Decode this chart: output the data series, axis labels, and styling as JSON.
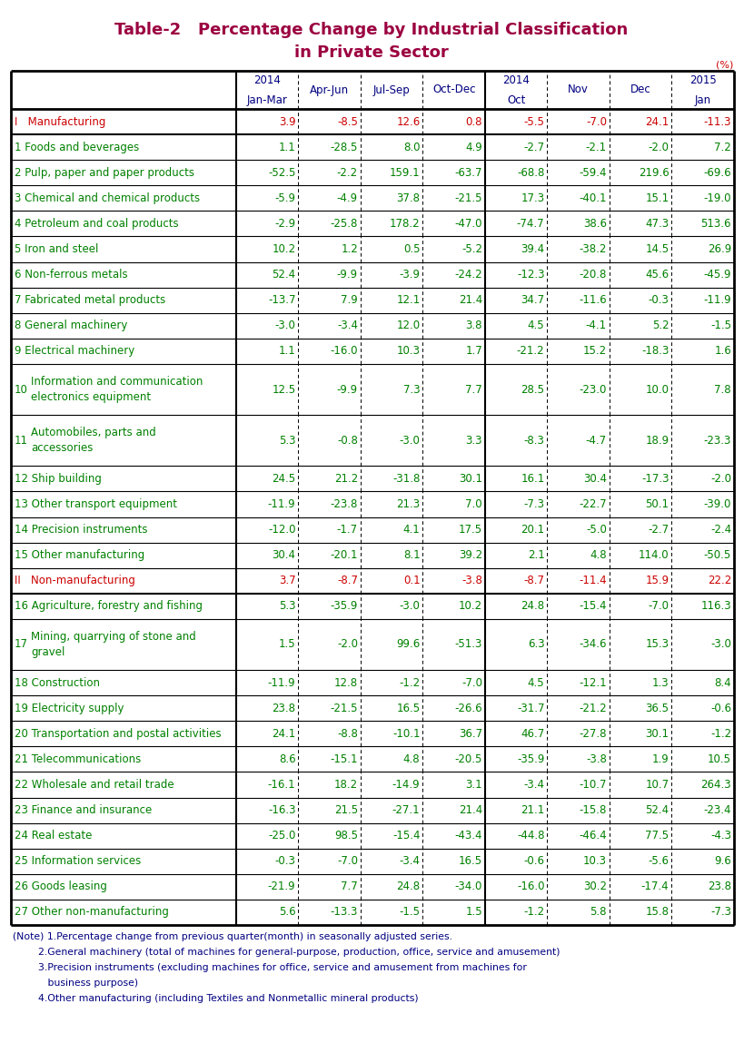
{
  "title_line1": "Table-2   Percentage Change by Industrial Classification",
  "title_line2": "in Private Sector",
  "title_color": "#9B0040",
  "percent_label": "(%)",
  "rows": [
    {
      "label": "I   Manufacturing",
      "label_color": "#CC0000",
      "values": [
        "3.9",
        "-8.5",
        "12.6",
        "0.8",
        "-5.5",
        "-7.0",
        "24.1",
        "-11.3"
      ],
      "is_section": true
    },
    {
      "label": "1 Foods and beverages",
      "label_color": "#008000",
      "values": [
        "1.1",
        "-28.5",
        "8.0",
        "4.9",
        "-2.7",
        "-2.1",
        "-2.0",
        "7.2"
      ],
      "is_section": false
    },
    {
      "label": "2 Pulp, paper and paper products",
      "label_color": "#008000",
      "values": [
        "-52.5",
        "-2.2",
        "159.1",
        "-63.7",
        "-68.8",
        "-59.4",
        "219.6",
        "-69.6"
      ],
      "is_section": false
    },
    {
      "label": "3 Chemical and chemical products",
      "label_color": "#008000",
      "values": [
        "-5.9",
        "-4.9",
        "37.8",
        "-21.5",
        "17.3",
        "-40.1",
        "15.1",
        "-19.0"
      ],
      "is_section": false
    },
    {
      "label": "4 Petroleum and coal products",
      "label_color": "#008000",
      "values": [
        "-2.9",
        "-25.8",
        "178.2",
        "-47.0",
        "-74.7",
        "38.6",
        "47.3",
        "513.6"
      ],
      "is_section": false
    },
    {
      "label": "5 Iron and steel",
      "label_color": "#008000",
      "values": [
        "10.2",
        "1.2",
        "0.5",
        "-5.2",
        "39.4",
        "-38.2",
        "14.5",
        "26.9"
      ],
      "is_section": false
    },
    {
      "label": "6 Non-ferrous metals",
      "label_color": "#008000",
      "values": [
        "52.4",
        "-9.9",
        "-3.9",
        "-24.2",
        "-12.3",
        "-20.8",
        "45.6",
        "-45.9"
      ],
      "is_section": false
    },
    {
      "label": "7 Fabricated metal products",
      "label_color": "#008000",
      "values": [
        "-13.7",
        "7.9",
        "12.1",
        "21.4",
        "34.7",
        "-11.6",
        "-0.3",
        "-11.9"
      ],
      "is_section": false
    },
    {
      "label": "8 General machinery",
      "label_color": "#008000",
      "values": [
        "-3.0",
        "-3.4",
        "12.0",
        "3.8",
        "4.5",
        "-4.1",
        "5.2",
        "-1.5"
      ],
      "is_section": false
    },
    {
      "label": "9 Electrical machinery",
      "label_color": "#008000",
      "values": [
        "1.1",
        "-16.0",
        "10.3",
        "1.7",
        "-21.2",
        "15.2",
        "-18.3",
        "1.6"
      ],
      "is_section": false
    },
    {
      "label": "Information and communication\nelectronics equipment",
      "num_label": "10",
      "label_color": "#008000",
      "values": [
        "12.5",
        "-9.9",
        "7.3",
        "7.7",
        "28.5",
        "-23.0",
        "10.0",
        "7.8"
      ],
      "is_section": false,
      "multiline": true
    },
    {
      "label": "Automobiles, parts and\naccessories",
      "num_label": "11",
      "label_color": "#008000",
      "values": [
        "5.3",
        "-0.8",
        "-3.0",
        "3.3",
        "-8.3",
        "-4.7",
        "18.9",
        "-23.3"
      ],
      "is_section": false,
      "multiline": true
    },
    {
      "label": "12 Ship building",
      "label_color": "#008000",
      "values": [
        "24.5",
        "21.2",
        "-31.8",
        "30.1",
        "16.1",
        "30.4",
        "-17.3",
        "-2.0"
      ],
      "is_section": false
    },
    {
      "label": "13 Other transport equipment",
      "label_color": "#008000",
      "values": [
        "-11.9",
        "-23.8",
        "21.3",
        "7.0",
        "-7.3",
        "-22.7",
        "50.1",
        "-39.0"
      ],
      "is_section": false
    },
    {
      "label": "14 Precision instruments",
      "label_color": "#008000",
      "values": [
        "-12.0",
        "-1.7",
        "4.1",
        "17.5",
        "20.1",
        "-5.0",
        "-2.7",
        "-2.4"
      ],
      "is_section": false
    },
    {
      "label": "15 Other manufacturing",
      "label_color": "#008000",
      "values": [
        "30.4",
        "-20.1",
        "8.1",
        "39.2",
        "2.1",
        "4.8",
        "114.0",
        "-50.5"
      ],
      "is_section": false
    },
    {
      "label": "II   Non-manufacturing",
      "label_color": "#CC0000",
      "values": [
        "3.7",
        "-8.7",
        "0.1",
        "-3.8",
        "-8.7",
        "-11.4",
        "15.9",
        "22.2"
      ],
      "is_section": true
    },
    {
      "label": "16 Agriculture, forestry and fishing",
      "label_color": "#008000",
      "values": [
        "5.3",
        "-35.9",
        "-3.0",
        "10.2",
        "24.8",
        "-15.4",
        "-7.0",
        "116.3"
      ],
      "is_section": false
    },
    {
      "label": "Mining, quarrying of stone and\ngravel",
      "num_label": "17",
      "label_color": "#008000",
      "values": [
        "1.5",
        "-2.0",
        "99.6",
        "-51.3",
        "6.3",
        "-34.6",
        "15.3",
        "-3.0"
      ],
      "is_section": false,
      "multiline": true
    },
    {
      "label": "18 Construction",
      "label_color": "#008000",
      "values": [
        "-11.9",
        "12.8",
        "-1.2",
        "-7.0",
        "4.5",
        "-12.1",
        "1.3",
        "8.4"
      ],
      "is_section": false
    },
    {
      "label": "19 Electricity supply",
      "label_color": "#008000",
      "values": [
        "23.8",
        "-21.5",
        "16.5",
        "-26.6",
        "-31.7",
        "-21.2",
        "36.5",
        "-0.6"
      ],
      "is_section": false
    },
    {
      "label": "20 Transportation and postal activities",
      "label_color": "#008000",
      "values": [
        "24.1",
        "-8.8",
        "-10.1",
        "36.7",
        "46.7",
        "-27.8",
        "30.1",
        "-1.2"
      ],
      "is_section": false
    },
    {
      "label": "21 Telecommunications",
      "label_color": "#008000",
      "values": [
        "8.6",
        "-15.1",
        "4.8",
        "-20.5",
        "-35.9",
        "-3.8",
        "1.9",
        "10.5"
      ],
      "is_section": false
    },
    {
      "label": "22 Wholesale and retail trade",
      "label_color": "#008000",
      "values": [
        "-16.1",
        "18.2",
        "-14.9",
        "3.1",
        "-3.4",
        "-10.7",
        "10.7",
        "264.3"
      ],
      "is_section": false
    },
    {
      "label": "23 Finance and insurance",
      "label_color": "#008000",
      "values": [
        "-16.3",
        "21.5",
        "-27.1",
        "21.4",
        "21.1",
        "-15.8",
        "52.4",
        "-23.4"
      ],
      "is_section": false
    },
    {
      "label": "24 Real estate",
      "label_color": "#008000",
      "values": [
        "-25.0",
        "98.5",
        "-15.4",
        "-43.4",
        "-44.8",
        "-46.4",
        "77.5",
        "-4.3"
      ],
      "is_section": false
    },
    {
      "label": "25 Information services",
      "label_color": "#008000",
      "values": [
        "-0.3",
        "-7.0",
        "-3.4",
        "16.5",
        "-0.6",
        "10.3",
        "-5.6",
        "9.6"
      ],
      "is_section": false
    },
    {
      "label": "26 Goods leasing",
      "label_color": "#008000",
      "values": [
        "-21.9",
        "7.7",
        "24.8",
        "-34.0",
        "-16.0",
        "30.2",
        "-17.4",
        "23.8"
      ],
      "is_section": false
    },
    {
      "label": "27 Other non-manufacturing",
      "label_color": "#008000",
      "values": [
        "5.6",
        "-13.3",
        "-1.5",
        "1.5",
        "-1.2",
        "5.8",
        "15.8",
        "-7.3"
      ],
      "is_section": false
    }
  ],
  "notes": [
    "(Note) 1.Percentage change from previous quarter(month) in seasonally adjusted series.",
    "        2.General machinery (total of machines for general-purpose, production, office, service and amusement)",
    "        3.Precision instruments (excluding machines for office, service and amusement from machines for",
    "           business purpose)",
    "        4.Other manufacturing (including Textiles and Nonmetallic mineral products)"
  ],
  "note_color": "#000080",
  "header_color": "#000080",
  "value_color": "#008000",
  "section_value_color": "#CC0000",
  "bg_color": "#FFFFFF"
}
